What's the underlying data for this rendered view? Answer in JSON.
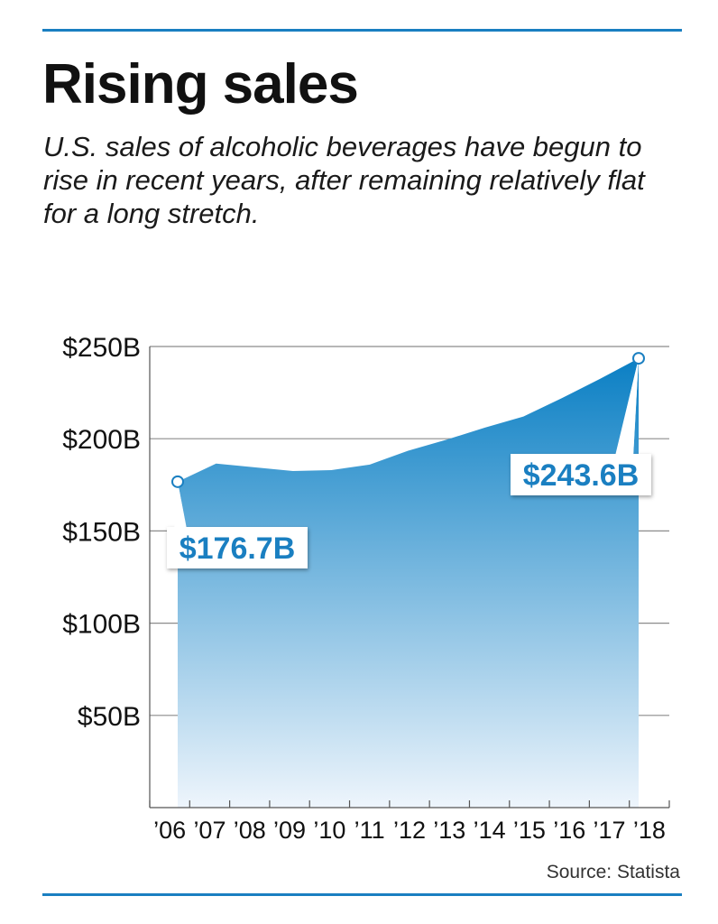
{
  "header": {
    "title": "Rising sales",
    "subtitle": "U.S. sales of alcoholic beverages have begun to rise in recent years, after remaining relatively flat for a long stretch."
  },
  "footer": {
    "source": "Source: Statista"
  },
  "colors": {
    "accent": "#1a7fc1",
    "area_top": "#0a7fc4",
    "area_bottom": "#eef5fc",
    "grid": "#8c8c8c",
    "axis": "#555555"
  },
  "chart_data": {
    "type": "area",
    "title": "Rising sales",
    "subtitle": "U.S. sales of alcoholic beverages have begun to rise in recent years, after remaining relatively flat for a long stretch.",
    "xlabel": "",
    "ylabel": "",
    "categories": [
      "’06",
      "’07",
      "’08",
      "’09",
      "’10",
      "’11",
      "’12",
      "’13",
      "’14",
      "’15",
      "’16",
      "’17",
      "’18"
    ],
    "series": [
      {
        "name": "",
        "values": [
          176.7,
          186.5,
          184.5,
          182.5,
          183.0,
          186.0,
          193.5,
          199.5,
          206.0,
          212.0,
          222.0,
          232.5,
          243.6
        ]
      }
    ],
    "ylim": [
      0,
      250
    ],
    "yticks": [
      {
        "value": 50,
        "label": "$50B"
      },
      {
        "value": 100,
        "label": "$100B"
      },
      {
        "value": 150,
        "label": "$150B"
      },
      {
        "value": 200,
        "label": "$200B"
      },
      {
        "value": 250,
        "label": "$250B"
      }
    ],
    "annotations": [
      {
        "index": 0,
        "label": "$176.7B"
      },
      {
        "index": 12,
        "label": "$243.6B"
      }
    ],
    "grid": true,
    "legend": "none"
  }
}
